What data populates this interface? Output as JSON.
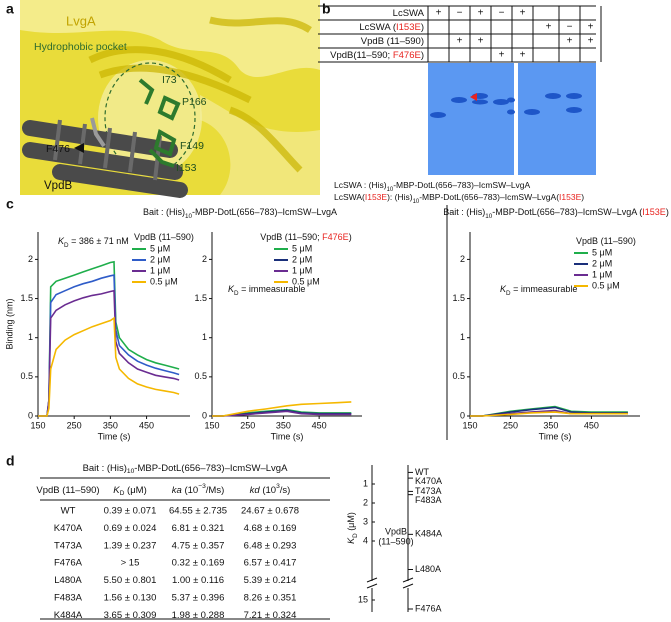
{
  "panel_labels": [
    "a",
    "b",
    "c",
    "d"
  ],
  "panel_a": {
    "protein_label": "LvgA",
    "pocket_label": "Hydrophobic pocket",
    "residues": [
      "I73",
      "P166",
      "F149",
      "I153"
    ],
    "vpdb_residue": "F476",
    "vpdb_label": "VpdB"
  },
  "panel_b": {
    "rows": [
      {
        "label": [
          "LcSWA"
        ],
        "cells": [
          "+",
          "−",
          "+",
          "−",
          "+",
          null,
          null,
          null
        ]
      },
      {
        "label": [
          "LcSWA (",
          {
            "text": "I153E",
            "color": "#e8231f"
          },
          ")"
        ],
        "cells": [
          null,
          null,
          null,
          null,
          null,
          "+",
          "−",
          "+"
        ]
      },
      {
        "label": [
          "VpdB (11–590)"
        ],
        "cells": [
          null,
          "+",
          "+",
          null,
          null,
          null,
          "+",
          "+"
        ]
      },
      {
        "label": [
          "VpdB(11–590; ",
          {
            "text": "F476E",
            "color": "#e8231f"
          },
          ")"
        ],
        "cells": [
          null,
          null,
          null,
          "+",
          "+",
          null,
          null,
          null
        ]
      }
    ],
    "captions": [
      [
        "LcSWA : (His)",
        {
          "text": "10",
          "sub": true
        },
        "-MBP-DotL(656–783)–IcmSW–LvgA"
      ],
      [
        "LcSWA(",
        {
          "text": "I153E",
          "color": "#e8231f"
        },
        "): (His)",
        {
          "text": "10",
          "sub": true
        },
        "-MBP-DotL(656–783)–IcmSW–LvgA(",
        {
          "text": "I153E",
          "color": "#e8231f"
        },
        ")"
      ]
    ]
  },
  "chart_data": [
    {
      "type": "line",
      "title": [
        "Bait : (His)",
        {
          "text": "10",
          "sub": true
        },
        "-MBP-DotL(656–783)–IcmSW–LvgA"
      ],
      "ylabel": "Binding (nm)",
      "xlabel": "Time (s)",
      "annotation": [
        {
          "text": "K",
          "italic": true
        },
        {
          "text": "D",
          "sub": true
        },
        " = 386 ± 71 nM"
      ],
      "legend_title": [
        "VpdB (11–590)"
      ],
      "x": [
        150,
        175,
        180,
        185,
        200,
        225,
        250,
        275,
        300,
        325,
        350,
        360,
        365,
        375,
        400,
        425,
        450,
        475,
        500,
        525,
        540
      ],
      "series": [
        {
          "name": "5 μM",
          "color": "#1fae4b",
          "values": [
            0,
            0,
            0.2,
            1.65,
            1.72,
            1.76,
            1.8,
            1.84,
            1.88,
            1.92,
            1.96,
            1.97,
            1.2,
            1.0,
            0.85,
            0.78,
            0.72,
            0.68,
            0.65,
            0.62,
            0.6
          ]
        },
        {
          "name": "2 μM",
          "color": "#2f5cc8",
          "values": [
            0,
            0,
            0.2,
            1.45,
            1.55,
            1.6,
            1.65,
            1.69,
            1.72,
            1.76,
            1.79,
            1.8,
            1.1,
            0.9,
            0.78,
            0.7,
            0.65,
            0.61,
            0.58,
            0.55,
            0.53
          ]
        },
        {
          "name": "1 μM",
          "color": "#6a2c91",
          "values": [
            0,
            0,
            0.2,
            1.25,
            1.35,
            1.42,
            1.47,
            1.51,
            1.54,
            1.56,
            1.59,
            1.6,
            0.95,
            0.8,
            0.68,
            0.6,
            0.56,
            0.52,
            0.5,
            0.48,
            0.46
          ]
        },
        {
          "name": "0.5 μM",
          "color": "#f5b800",
          "values": [
            0,
            0,
            0.1,
            0.6,
            0.85,
            0.97,
            1.04,
            1.09,
            1.14,
            1.18,
            1.22,
            1.25,
            0.75,
            0.6,
            0.48,
            0.41,
            0.37,
            0.34,
            0.32,
            0.3,
            0.28
          ]
        }
      ],
      "xlim": [
        150,
        570
      ],
      "ylim": [
        0,
        2.35
      ],
      "xticks": [
        150,
        250,
        350,
        450
      ],
      "yticks": [
        0,
        0.5,
        1,
        1.5,
        2
      ]
    },
    {
      "type": "line",
      "xlabel": "Time (s)",
      "annotation": [
        {
          "text": "K",
          "italic": true
        },
        {
          "text": "D",
          "sub": true
        },
        " = immeasurable"
      ],
      "legend_title": [
        "VpdB (11–590; ",
        {
          "text": "F476E",
          "color": "#e8231f"
        },
        ")"
      ],
      "x": [
        150,
        180,
        250,
        300,
        360,
        400,
        450,
        500,
        540
      ],
      "series": [
        {
          "name": "5 μM",
          "color": "#1fae4b",
          "values": [
            0,
            0,
            0.04,
            0.06,
            0.08,
            0.05,
            0.04,
            0.04,
            0.04
          ]
        },
        {
          "name": "2 μM",
          "color": "#1a2f7a",
          "values": [
            0,
            0,
            0.03,
            0.05,
            0.07,
            0.04,
            0.03,
            0.03,
            0.03
          ]
        },
        {
          "name": "1 μM",
          "color": "#6a2c91",
          "values": [
            0,
            0,
            0.02,
            0.04,
            0.06,
            0.03,
            0.02,
            0.02,
            0.02
          ]
        },
        {
          "name": "0.5 μM",
          "color": "#f5b800",
          "values": [
            0,
            0,
            0.06,
            0.09,
            0.13,
            0.15,
            0.16,
            0.17,
            0.18
          ]
        }
      ],
      "xlim": [
        150,
        570
      ],
      "ylim": [
        0,
        2.35
      ],
      "xticks": [
        150,
        250,
        350,
        450
      ],
      "yticks": [
        0,
        0.5,
        1,
        1.5,
        2
      ]
    },
    {
      "type": "line",
      "title": [
        "Bait : (His)",
        {
          "text": "10",
          "sub": true
        },
        "-MBP-DotL(656–783)–IcmSW–LvgA (",
        {
          "text": "I153E",
          "color": "#e8231f"
        },
        ")"
      ],
      "xlabel": "Time (s)",
      "annotation": [
        {
          "text": "K",
          "italic": true
        },
        {
          "text": "D",
          "sub": true
        },
        " = immeasurable"
      ],
      "legend_title": [
        "VpdB (11–590)"
      ],
      "x": [
        150,
        180,
        250,
        300,
        360,
        400,
        450,
        500,
        540
      ],
      "series": [
        {
          "name": "5 μM",
          "color": "#1fae4b",
          "values": [
            0,
            0,
            0.06,
            0.09,
            0.12,
            0.06,
            0.05,
            0.05,
            0.05
          ]
        },
        {
          "name": "2 μM",
          "color": "#1a2f7a",
          "values": [
            0,
            0,
            0.05,
            0.08,
            0.11,
            0.05,
            0.04,
            0.04,
            0.04
          ]
        },
        {
          "name": "1 μM",
          "color": "#6a2c91",
          "values": [
            0,
            0,
            0.03,
            0.05,
            0.07,
            0.03,
            0.03,
            0.03,
            0.03
          ]
        },
        {
          "name": "0.5 μM",
          "color": "#f5b800",
          "values": [
            0,
            0,
            0.02,
            0.04,
            0.05,
            0.03,
            0.03,
            0.03,
            0.03
          ]
        }
      ],
      "xlim": [
        150,
        570
      ],
      "ylim": [
        0,
        2.35
      ],
      "xticks": [
        150,
        250,
        350,
        450
      ],
      "yticks": [
        0,
        0.5,
        1,
        1.5,
        2
      ]
    },
    {
      "type": "scale",
      "ylabel": [
        {
          "text": "K",
          "italic": true
        },
        {
          "text": "D",
          "sub": true
        },
        " (μM)"
      ],
      "label": [
        "VpdB",
        "(11–590)"
      ],
      "categories": [
        "WT",
        "K470A",
        "T473A",
        "F483A",
        "K484A",
        "L480A",
        "F476A"
      ],
      "values": [
        0.39,
        0.69,
        1.39,
        1.56,
        3.65,
        5.5,
        16
      ],
      "ylim": [
        0,
        16
      ],
      "yticks": [
        1,
        2,
        3,
        4,
        15
      ],
      "axis_break": [
        6,
        14
      ]
    }
  ],
  "table": {
    "title": [
      "Bait : (His)",
      {
        "text": "10",
        "sub": true
      },
      "-MBP-DotL(656–783)–IcmSW–LvgA"
    ],
    "columns": [
      [
        "VpdB (11–590)"
      ],
      [
        {
          "text": "K",
          "italic": true
        },
        {
          "text": "D",
          "sub": true
        },
        " (μM)"
      ],
      [
        {
          "text": "ka",
          "italic": true
        },
        " (10",
        {
          "text": "−3",
          "sup": true
        },
        "/Ms)"
      ],
      [
        {
          "text": "kd",
          "italic": true
        },
        " (10",
        {
          "text": "3",
          "sup": true
        },
        "/s)"
      ]
    ],
    "rows": [
      [
        "WT",
        "0.39 ± 0.071",
        "64.55 ± 2.735",
        "24.67 ± 0.678"
      ],
      [
        "K470A",
        "0.69 ± 0.024",
        "6.81 ± 0.321",
        "4.68 ± 0.169"
      ],
      [
        "T473A",
        "1.39 ± 0.237",
        "4.75 ± 0.357",
        "6.48 ± 0.293"
      ],
      [
        "F476A",
        "> 15",
        "0.32 ± 0.169",
        "6.57 ± 0.417"
      ],
      [
        "L480A",
        "5.50 ± 0.801",
        "1.00 ± 0.116",
        "5.39 ± 0.214"
      ],
      [
        "F483A",
        "1.56 ± 0.130",
        "5.37 ± 0.396",
        "8.26 ± 0.351"
      ],
      [
        "K484A",
        "3.65 ± 0.309",
        "1.98 ± 0.288",
        "7.21 ± 0.324"
      ]
    ]
  }
}
